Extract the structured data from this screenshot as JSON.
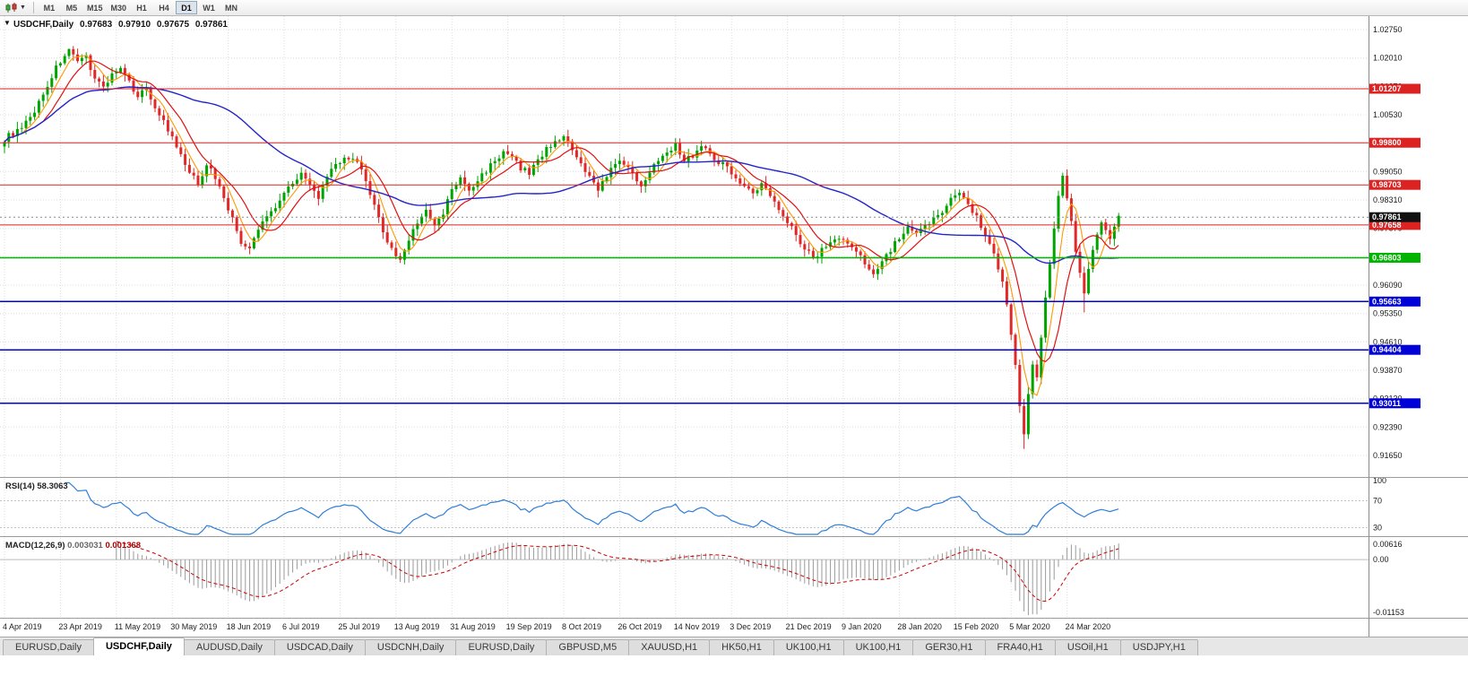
{
  "toolbar": {
    "chart_type": "Candlesticks",
    "timeframes": [
      "M1",
      "M5",
      "M15",
      "M30",
      "H1",
      "H4",
      "D1",
      "W1",
      "MN"
    ],
    "active_timeframe": "D1"
  },
  "chart": {
    "title": "USDCHF,Daily",
    "ohlc": {
      "open": "0.97683",
      "high": "0.97910",
      "low": "0.97675",
      "close": "0.97861"
    },
    "last_price_tag": "0.97861",
    "price_axis_labels": [
      "1.02750",
      "1.02010",
      "1.01270",
      "1.00530",
      "0.99790",
      "0.99050",
      "0.98310",
      "0.97570",
      "0.96830",
      "0.96090",
      "0.95350",
      "0.94610",
      "0.93870",
      "0.93130",
      "0.92390",
      "0.91650"
    ],
    "levels": [
      {
        "price": 1.01207,
        "label": "1.01207",
        "color": "#dd2222",
        "kind": "resistance"
      },
      {
        "price": 0.998,
        "label": "0.99800",
        "color": "#dd2222",
        "kind": "resistance"
      },
      {
        "price": 0.98703,
        "label": "0.98703",
        "color": "#dd2222",
        "kind": "resistance"
      },
      {
        "price": 0.97658,
        "label": "0.97658",
        "color": "#dd2222",
        "kind": "resistance"
      },
      {
        "price": 0.96803,
        "label": "0.96803",
        "color": "#00b400",
        "kind": "pivot"
      },
      {
        "price": 0.95663,
        "label": "0.95663",
        "color": "#0000d8",
        "kind": "support"
      },
      {
        "price": 0.94404,
        "label": "0.94404",
        "color": "#0000d8",
        "kind": "support"
      },
      {
        "price": 0.93011,
        "label": "0.93011",
        "color": "#0000d8",
        "kind": "support"
      }
    ]
  },
  "chart_data": {
    "type": "candlestick",
    "symbol": "USDCHF",
    "timeframe": "Daily",
    "title": "USDCHF,Daily",
    "y_axis": {
      "min": 0.9124,
      "max": 1.0312,
      "grid_step": 0.0074
    },
    "candles_count": 260,
    "label_every": 13,
    "date_labels": [
      "4 Apr 2019",
      "23 Apr 2019",
      "11 May 2019",
      "30 May 2019",
      "18 Jun 2019",
      "6 Jul 2019",
      "25 Jul 2019",
      "13 Aug 2019",
      "31 Aug 2019",
      "19 Sep 2019",
      "8 Oct 2019",
      "26 Oct 2019",
      "14 Nov 2019",
      "3 Dec 2019",
      "21 Dec 2019",
      "9 Jan 2020",
      "28 Jan 2020",
      "15 Feb 2020",
      "5 Mar 2020",
      "24 Mar 2020"
    ],
    "close_path_anchors": [
      [
        0,
        0.999
      ],
      [
        2,
        1.0005
      ],
      [
        4,
        1.0015
      ],
      [
        6,
        1.0045
      ],
      [
        8,
        1.0085
      ],
      [
        10,
        1.013
      ],
      [
        12,
        1.0175
      ],
      [
        14,
        1.021
      ],
      [
        15,
        1.022
      ],
      [
        17,
        1.0185
      ],
      [
        19,
        1.0205
      ],
      [
        21,
        1.015
      ],
      [
        23,
        1.0125
      ],
      [
        25,
        1.016
      ],
      [
        27,
        1.017
      ],
      [
        29,
        1.0135
      ],
      [
        31,
        1.0105
      ],
      [
        33,
        1.012
      ],
      [
        35,
        1.0075
      ],
      [
        37,
        1.0035
      ],
      [
        39,
        0.999
      ],
      [
        41,
        0.9945
      ],
      [
        43,
        0.99
      ],
      [
        45,
        0.9875
      ],
      [
        47,
        0.9925
      ],
      [
        49,
        0.989
      ],
      [
        51,
        0.984
      ],
      [
        53,
        0.978
      ],
      [
        55,
        0.972
      ],
      [
        57,
        0.97
      ],
      [
        59,
        0.9755
      ],
      [
        61,
        0.979
      ],
      [
        63,
        0.9815
      ],
      [
        65,
        0.985
      ],
      [
        67,
        0.988
      ],
      [
        69,
        0.99
      ],
      [
        71,
        0.9865
      ],
      [
        73,
        0.984
      ],
      [
        75,
        0.9885
      ],
      [
        77,
        0.9925
      ],
      [
        79,
        0.9935
      ],
      [
        81,
        0.9945
      ],
      [
        83,
        0.9905
      ],
      [
        85,
        0.9845
      ],
      [
        87,
        0.978
      ],
      [
        89,
        0.9725
      ],
      [
        91,
        0.9685
      ],
      [
        92,
        0.9672
      ],
      [
        94,
        0.973
      ],
      [
        96,
        0.9775
      ],
      [
        98,
        0.98
      ],
      [
        100,
        0.9762
      ],
      [
        102,
        0.9795
      ],
      [
        104,
        0.986
      ],
      [
        106,
        0.9885
      ],
      [
        108,
        0.9855
      ],
      [
        110,
        0.988
      ],
      [
        112,
        0.991
      ],
      [
        114,
        0.9935
      ],
      [
        116,
        0.9952
      ],
      [
        118,
        0.994
      ],
      [
        120,
        0.9915
      ],
      [
        122,
        0.99
      ],
      [
        124,
        0.9938
      ],
      [
        126,
        0.9962
      ],
      [
        128,
        0.9988
      ],
      [
        130,
        0.9995
      ],
      [
        132,
        0.9958
      ],
      [
        134,
        0.992
      ],
      [
        136,
        0.9888
      ],
      [
        138,
        0.9862
      ],
      [
        140,
        0.9895
      ],
      [
        142,
        0.9922
      ],
      [
        144,
        0.993
      ],
      [
        146,
        0.9895
      ],
      [
        148,
        0.9872
      ],
      [
        150,
        0.9902
      ],
      [
        152,
        0.9938
      ],
      [
        154,
        0.9962
      ],
      [
        156,
        0.9972
      ],
      [
        158,
        0.9935
      ],
      [
        160,
        0.9948
      ],
      [
        162,
        0.9972
      ],
      [
        164,
        0.9952
      ],
      [
        166,
        0.9932
      ],
      [
        168,
        0.9915
      ],
      [
        170,
        0.9892
      ],
      [
        172,
        0.9868
      ],
      [
        174,
        0.9845
      ],
      [
        176,
        0.9872
      ],
      [
        178,
        0.9842
      ],
      [
        180,
        0.9812
      ],
      [
        182,
        0.9778
      ],
      [
        184,
        0.974
      ],
      [
        186,
        0.9705
      ],
      [
        188,
        0.968
      ],
      [
        190,
        0.9702
      ],
      [
        192,
        0.9722
      ],
      [
        194,
        0.9735
      ],
      [
        196,
        0.9715
      ],
      [
        198,
        0.9698
      ],
      [
        200,
        0.9662
      ],
      [
        202,
        0.9645
      ],
      [
        204,
        0.9672
      ],
      [
        206,
        0.9702
      ],
      [
        208,
        0.9732
      ],
      [
        210,
        0.9755
      ],
      [
        212,
        0.9738
      ],
      [
        214,
        0.9762
      ],
      [
        216,
        0.9782
      ],
      [
        218,
        0.9805
      ],
      [
        220,
        0.9832
      ],
      [
        222,
        0.9852
      ],
      [
        224,
        0.9822
      ],
      [
        226,
        0.9788
      ],
      [
        228,
        0.9742
      ],
      [
        230,
        0.9692
      ],
      [
        232,
        0.9622
      ],
      [
        233,
        0.956
      ],
      [
        234,
        0.948
      ],
      [
        235,
        0.9395
      ],
      [
        236,
        0.93
      ],
      [
        237,
        0.9225
      ],
      [
        238,
        0.932
      ],
      [
        239,
        0.941
      ],
      [
        240,
        0.937
      ],
      [
        241,
        0.948
      ],
      [
        242,
        0.9572
      ],
      [
        243,
        0.9662
      ],
      [
        244,
        0.976
      ],
      [
        245,
        0.9845
      ],
      [
        246,
        0.9888
      ],
      [
        247,
        0.9842
      ],
      [
        248,
        0.9772
      ],
      [
        249,
        0.97
      ],
      [
        250,
        0.9636
      ],
      [
        251,
        0.9585
      ],
      [
        252,
        0.9655
      ],
      [
        253,
        0.9705
      ],
      [
        254,
        0.9742
      ],
      [
        255,
        0.9772
      ],
      [
        256,
        0.9748
      ],
      [
        257,
        0.9728
      ],
      [
        258,
        0.9762
      ],
      [
        259,
        0.9786
      ]
    ],
    "wick_overrides": [
      {
        "i": 15,
        "high": 1.0226
      },
      {
        "i": 237,
        "low": 0.9182
      },
      {
        "i": 246,
        "high": 0.9902
      },
      {
        "i": 251,
        "low": 0.9538
      }
    ],
    "colors": {
      "bull": "#00a400",
      "bear": "#e02828",
      "ma_fast": "#ff9900",
      "ma_mid": "#e01010",
      "ma_slow": "#2424cc",
      "grid": "#dcdcdc"
    },
    "ma_periods": {
      "fast": 5,
      "mid": 10,
      "slow": 45
    }
  },
  "rsi": {
    "name": "RSI(14)",
    "value": "58.3063",
    "period": 14,
    "axis_labels": [
      "100",
      "70",
      "30"
    ],
    "levels": [
      70,
      30
    ],
    "color": "#2f7ed8"
  },
  "macd": {
    "name": "MACD(12,26,9)",
    "main_value": "0.003031",
    "signal_value": "0.001368",
    "fast": 12,
    "slow": 26,
    "signal_period": 9,
    "axis_labels": [
      "0.00616",
      "0.00",
      "-0.01153"
    ],
    "histogram_color": "#9a9a9a",
    "signal_color": "#cc0000"
  },
  "tabs": {
    "items": [
      "EURUSD,Daily",
      "USDCHF,Daily",
      "AUDUSD,Daily",
      "USDCAD,Daily",
      "USDCNH,Daily",
      "EURUSD,Daily",
      "GBPUSD,M5",
      "XAUUSD,H1",
      "HK50,H1",
      "UK100,H1",
      "UK100,H1",
      "GER30,H1",
      "FRA40,H1",
      "USOil,H1",
      "USDJPY,H1"
    ],
    "active_index": 1
  }
}
